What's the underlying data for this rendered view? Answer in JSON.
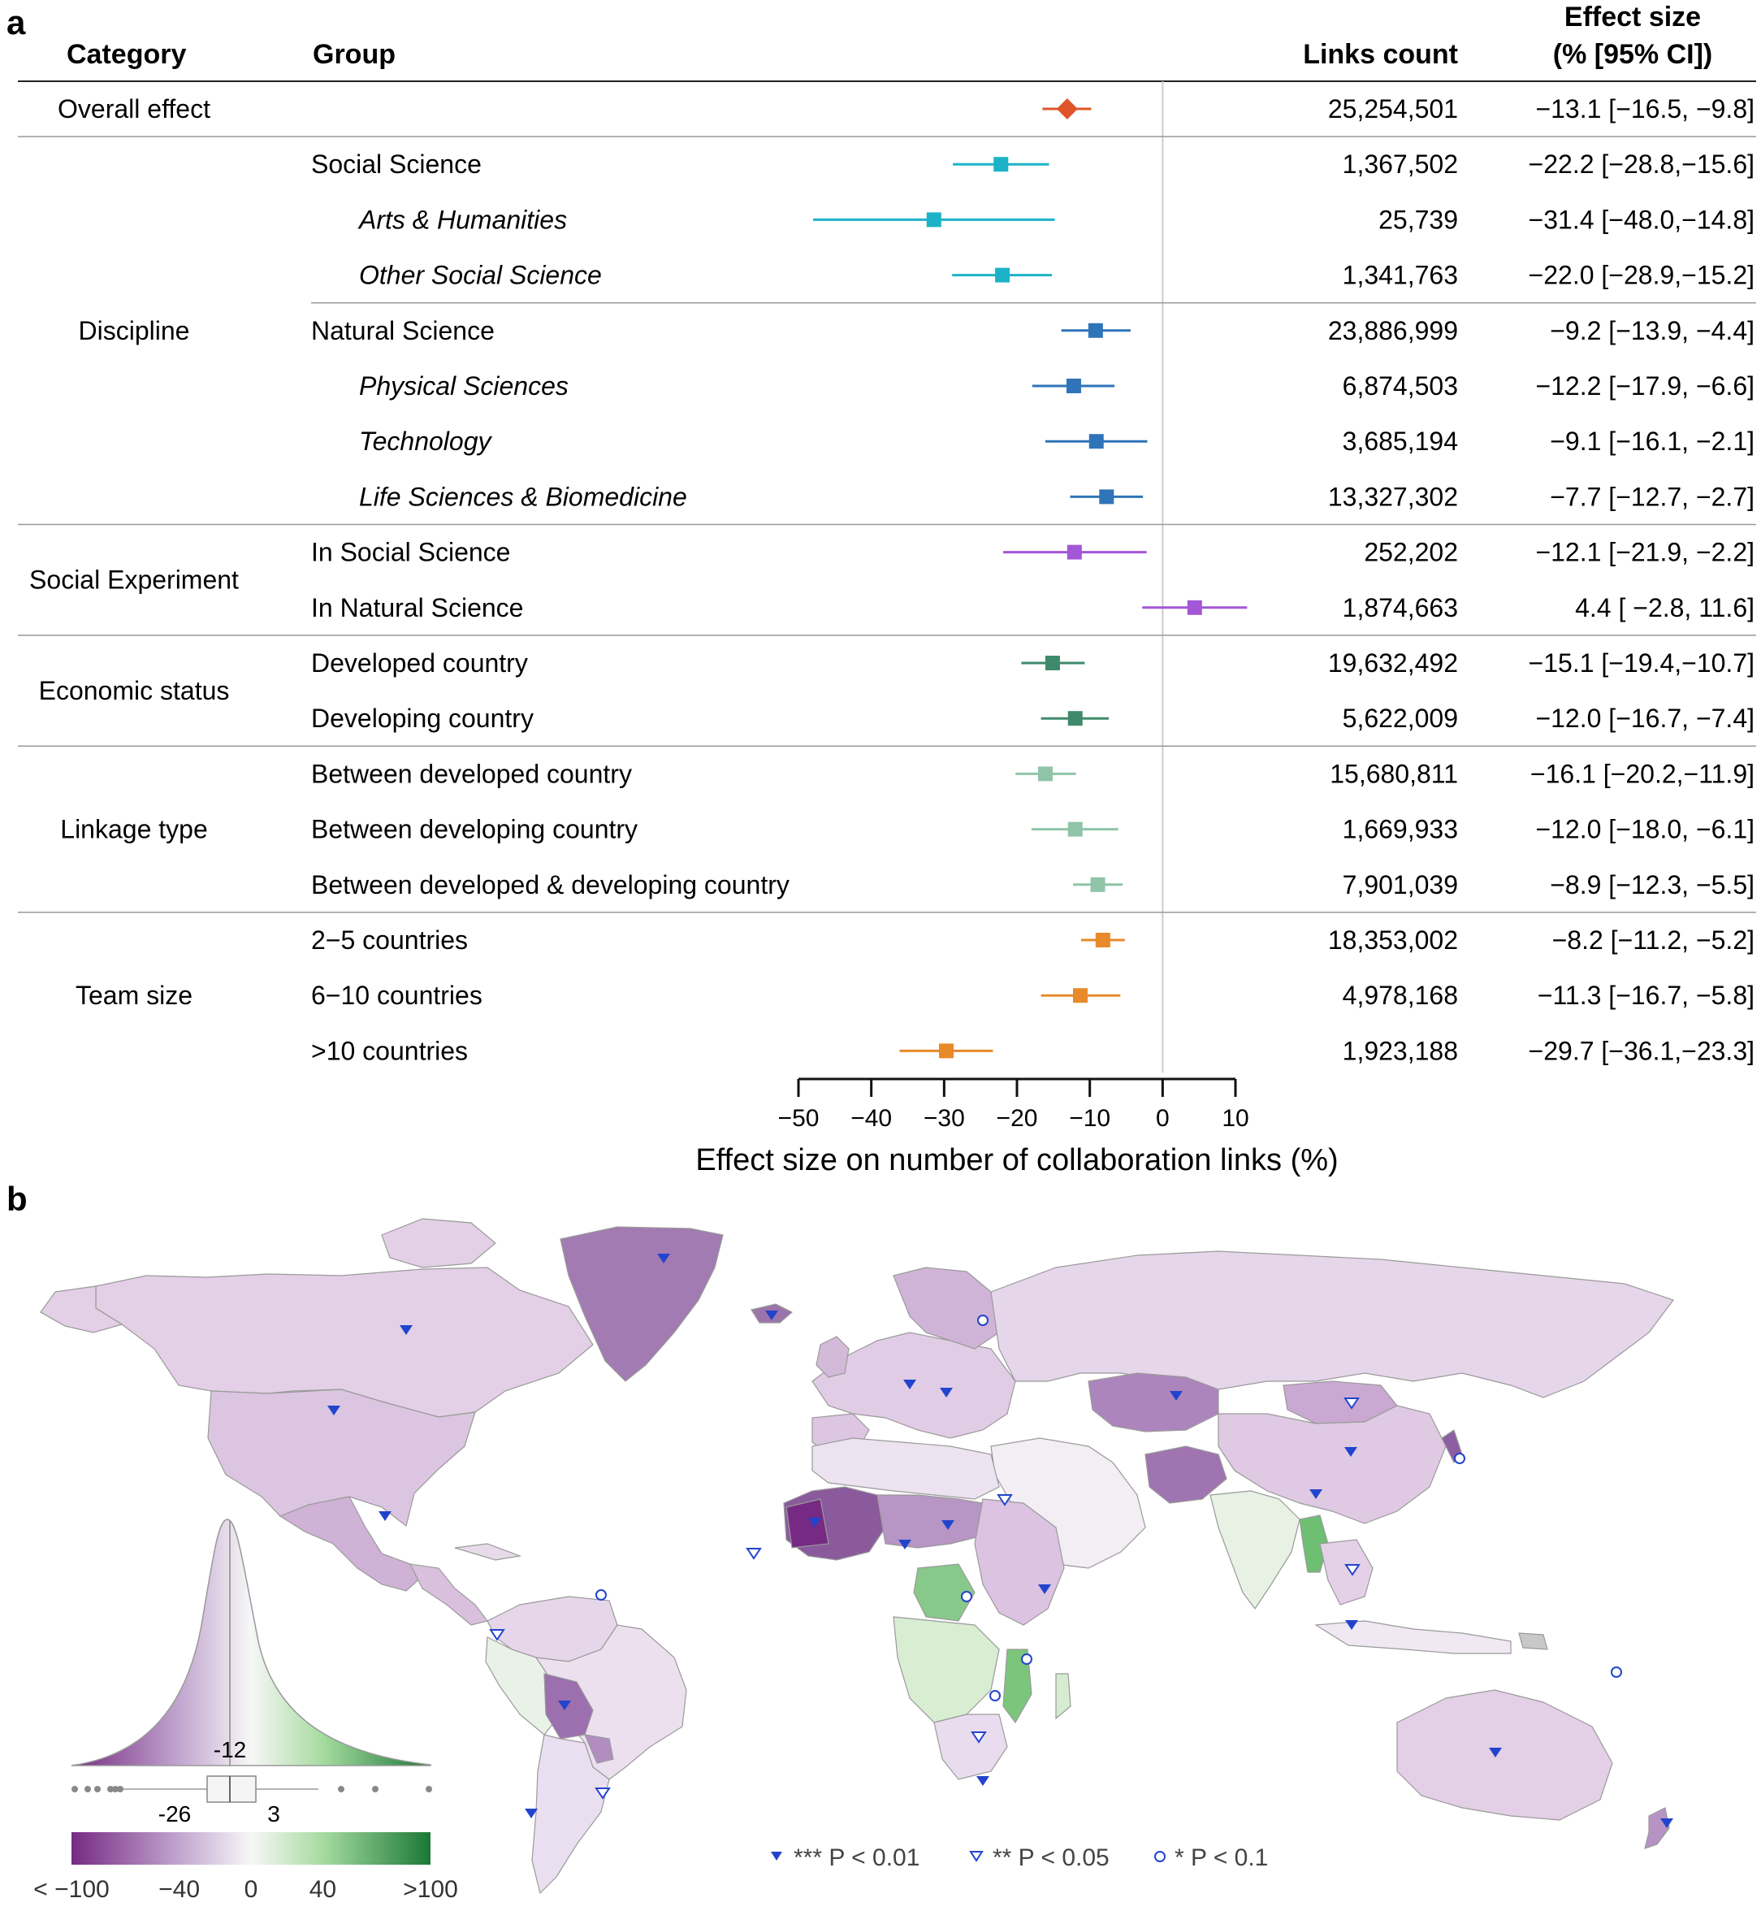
{
  "panel_a": {
    "panel_label": "a",
    "headers": {
      "category": "Category",
      "group": "Group",
      "links": "Links count",
      "effect_line1": "Effect size",
      "effect_line2": "(% [95% CI])"
    },
    "categories": [
      {
        "label": "Overall effect",
        "first_row": 0,
        "last_row": 0
      },
      {
        "label": "Discipline",
        "first_row": 1,
        "last_row": 7
      },
      {
        "label": "Social Experiment",
        "first_row": 8,
        "last_row": 9
      },
      {
        "label": "Economic status",
        "first_row": 10,
        "last_row": 11
      },
      {
        "label": "Linkage type",
        "first_row": 12,
        "last_row": 14
      },
      {
        "label": "Team size",
        "first_row": 15,
        "last_row": 17
      }
    ],
    "rows": [
      {
        "group": "",
        "links": "25,254,501",
        "effect_text": "−13.1 [−16.5,  −9.8]",
        "italic": false,
        "indent": false,
        "color": "#e0542a",
        "marker": "diamond"
      },
      {
        "group": "Social Science",
        "links": "1,367,502",
        "effect_text": "−22.2 [−28.8,−15.6]",
        "italic": false,
        "indent": false,
        "color": "#1cb3c8",
        "marker": "square"
      },
      {
        "group": "Arts & Humanities",
        "links": "25,739",
        "effect_text": "−31.4 [−48.0,−14.8]",
        "italic": true,
        "indent": true,
        "color": "#1cb3c8",
        "marker": "square"
      },
      {
        "group": "Other Social Science",
        "links": "1,341,763",
        "effect_text": "−22.0 [−28.9,−15.2]",
        "italic": true,
        "indent": true,
        "color": "#1cb3c8",
        "marker": "square"
      },
      {
        "group": "Natural Science",
        "links": "23,886,999",
        "effect_text": "−9.2 [−13.9,  −4.4]",
        "italic": false,
        "indent": false,
        "color": "#2f74b8",
        "marker": "square"
      },
      {
        "group": "Physical Sciences",
        "links": "6,874,503",
        "effect_text": "−12.2 [−17.9,  −6.6]",
        "italic": true,
        "indent": true,
        "color": "#2f74b8",
        "marker": "square"
      },
      {
        "group": "Technology",
        "links": "3,685,194",
        "effect_text": "−9.1 [−16.1,  −2.1]",
        "italic": true,
        "indent": true,
        "color": "#2f74b8",
        "marker": "square"
      },
      {
        "group": "Life Sciences & Biomedicine",
        "links": "13,327,302",
        "effect_text": "−7.7 [−12.7,  −2.7]",
        "italic": true,
        "indent": true,
        "color": "#2f74b8",
        "marker": "square"
      },
      {
        "group": "In Social Science",
        "links": "252,202",
        "effect_text": "−12.1 [−21.9,  −2.2]",
        "italic": false,
        "indent": false,
        "color": "#a357d6",
        "marker": "square"
      },
      {
        "group": "In Natural Science",
        "links": "1,874,663",
        "effect_text": "4.4 [  −2.8,  11.6]",
        "italic": false,
        "indent": false,
        "color": "#a357d6",
        "marker": "square"
      },
      {
        "group": "Developed country",
        "links": "19,632,492",
        "effect_text": "−15.1 [−19.4,−10.7]",
        "italic": false,
        "indent": false,
        "color": "#3f8a6c",
        "marker": "square"
      },
      {
        "group": "Developing country",
        "links": "5,622,009",
        "effect_text": "−12.0 [−16.7,  −7.4]",
        "italic": false,
        "indent": false,
        "color": "#3f8a6c",
        "marker": "square"
      },
      {
        "group": "Between developed country",
        "links": "15,680,811",
        "effect_text": "−16.1 [−20.2,−11.9]",
        "italic": false,
        "indent": false,
        "color": "#8fc4a8",
        "marker": "square"
      },
      {
        "group": "Between developing country",
        "links": "1,669,933",
        "effect_text": "−12.0 [−18.0,  −6.1]",
        "italic": false,
        "indent": false,
        "color": "#8fc4a8",
        "marker": "square"
      },
      {
        "group": "Between developed & developing country",
        "links": "7,901,039",
        "effect_text": "−8.9 [−12.3,  −5.5]",
        "italic": false,
        "indent": false,
        "color": "#8fc4a8",
        "marker": "square"
      },
      {
        "group": "2−5 countries",
        "links": "18,353,002",
        "effect_text": "−8.2 [−11.2,  −5.2]",
        "italic": false,
        "indent": false,
        "color": "#e8892a",
        "marker": "square"
      },
      {
        "group": "6−10 countries",
        "links": "4,978,168",
        "effect_text": "−11.3 [−16.7,  −5.8]",
        "italic": false,
        "indent": false,
        "color": "#e8892a",
        "marker": "square"
      },
      {
        "group": ">10 countries",
        "links": "1,923,188",
        "effect_text": "−29.7 [−36.1,−23.3]",
        "italic": false,
        "indent": false,
        "color": "#e8892a",
        "marker": "square"
      }
    ],
    "axis_ticks": [
      "−50",
      "−40",
      "−30",
      "−20",
      "−10",
      "0",
      "10"
    ],
    "xlabel": "Effect size on number of collaboration links (%)"
  },
  "panel_b": {
    "panel_label": "b",
    "density_median_label": "-12",
    "box_q1_label": "-26",
    "box_q3_label": "3",
    "colorbar_ticks": [
      "< −100",
      "−40",
      "0",
      "40",
      ">100"
    ],
    "legend": [
      {
        "symbol": "filled-triangle",
        "label": "*** P < 0.01"
      },
      {
        "symbol": "open-triangle",
        "label": "** P < 0.05"
      },
      {
        "symbol": "open-circle",
        "label": "* P < 0.1"
      }
    ],
    "colors": {
      "negative": "#762a83",
      "neutral": "#f7f7f7",
      "positive": "#1b7837",
      "marker": "#2244cc"
    }
  },
  "chart_data": [
    {
      "type": "forest",
      "xlabel": "Effect size on number of collaboration links (%)",
      "xlim": [
        -50,
        10
      ],
      "series": [
        {
          "category": "Overall effect",
          "group": "Overall effect",
          "links": 25254501,
          "effect": -13.1,
          "ci": [
            -16.5,
            -9.8
          ]
        },
        {
          "category": "Discipline",
          "group": "Social Science",
          "links": 1367502,
          "effect": -22.2,
          "ci": [
            -28.8,
            -15.6
          ]
        },
        {
          "category": "Discipline",
          "group": "Arts & Humanities",
          "links": 25739,
          "effect": -31.4,
          "ci": [
            -48.0,
            -14.8
          ]
        },
        {
          "category": "Discipline",
          "group": "Other Social Science",
          "links": 1341763,
          "effect": -22.0,
          "ci": [
            -28.9,
            -15.2
          ]
        },
        {
          "category": "Discipline",
          "group": "Natural Science",
          "links": 23886999,
          "effect": -9.2,
          "ci": [
            -13.9,
            -4.4
          ]
        },
        {
          "category": "Discipline",
          "group": "Physical Sciences",
          "links": 6874503,
          "effect": -12.2,
          "ci": [
            -17.9,
            -6.6
          ]
        },
        {
          "category": "Discipline",
          "group": "Technology",
          "links": 3685194,
          "effect": -9.1,
          "ci": [
            -16.1,
            -2.1
          ]
        },
        {
          "category": "Discipline",
          "group": "Life Sciences & Biomedicine",
          "links": 13327302,
          "effect": -7.7,
          "ci": [
            -12.7,
            -2.7
          ]
        },
        {
          "category": "Social Experiment",
          "group": "In Social Science",
          "links": 252202,
          "effect": -12.1,
          "ci": [
            -21.9,
            -2.2
          ]
        },
        {
          "category": "Social Experiment",
          "group": "In Natural Science",
          "links": 1874663,
          "effect": 4.4,
          "ci": [
            -2.8,
            11.6
          ]
        },
        {
          "category": "Economic status",
          "group": "Developed country",
          "links": 19632492,
          "effect": -15.1,
          "ci": [
            -19.4,
            -10.7
          ]
        },
        {
          "category": "Economic status",
          "group": "Developing country",
          "links": 5622009,
          "effect": -12.0,
          "ci": [
            -16.7,
            -7.4
          ]
        },
        {
          "category": "Linkage type",
          "group": "Between developed country",
          "links": 15680811,
          "effect": -16.1,
          "ci": [
            -20.2,
            -11.9
          ]
        },
        {
          "category": "Linkage type",
          "group": "Between developing country",
          "links": 1669933,
          "effect": -12.0,
          "ci": [
            -18.0,
            -6.1
          ]
        },
        {
          "category": "Linkage type",
          "group": "Between developed & developing country",
          "links": 7901039,
          "effect": -8.9,
          "ci": [
            -12.3,
            -5.5
          ]
        },
        {
          "category": "Team size",
          "group": "2−5 countries",
          "links": 18353002,
          "effect": -8.2,
          "ci": [
            -11.2,
            -5.2
          ]
        },
        {
          "category": "Team size",
          "group": "6−10 countries",
          "links": 4978168,
          "effect": -11.3,
          "ci": [
            -16.7,
            -5.8
          ]
        },
        {
          "category": "Team size",
          "group": ">10 countries",
          "links": 1923188,
          "effect": -29.7,
          "ci": [
            -36.1,
            -23.3
          ]
        }
      ]
    },
    {
      "type": "choropleth",
      "color_scale": {
        "min": -100,
        "max": 100,
        "ticks": [
          -100,
          -40,
          0,
          40,
          100
        ],
        "colors": [
          "#762a83",
          "#f7f7f7",
          "#1b7837"
        ]
      },
      "distribution": {
        "median": -12,
        "q1": -26,
        "q3": 3
      },
      "significance_legend": [
        "*** P < 0.01",
        "** P < 0.05",
        "* P < 0.1"
      ]
    }
  ]
}
